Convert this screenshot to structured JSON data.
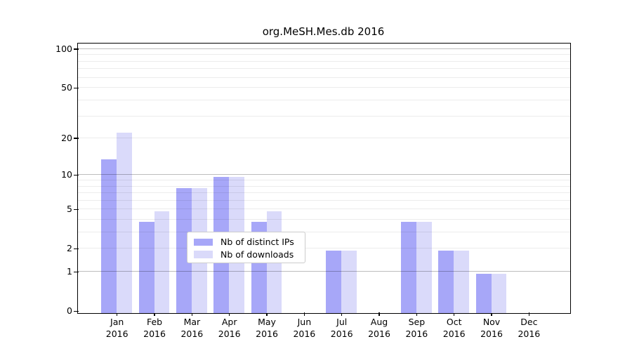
{
  "chart_data": {
    "type": "bar",
    "title": "org.MeSH.Mes.db 2016",
    "x_categories": [
      "Jan",
      "Feb",
      "Mar",
      "Apr",
      "May",
      "Jun",
      "Jul",
      "Aug",
      "Sep",
      "Oct",
      "Nov",
      "Dec"
    ],
    "x_year_label": "2016",
    "series": [
      {
        "name": "Nb of distinct IPs",
        "color": "#a7a7f8",
        "values": [
          14,
          4,
          8,
          10,
          4,
          0,
          2,
          0,
          4,
          2,
          1,
          0
        ]
      },
      {
        "name": "Nb of downloads",
        "color": "#dadafa",
        "values": [
          23,
          5,
          8,
          10,
          5,
          0,
          2,
          0,
          4,
          2,
          1,
          0
        ]
      }
    ],
    "y_axis": {
      "scale": "log1p",
      "tick_labels": [
        0,
        1,
        2,
        5,
        10,
        20,
        50,
        100
      ],
      "range": [
        0,
        100
      ]
    },
    "grid": {
      "minor_lines": [
        2,
        3,
        4,
        5,
        6,
        7,
        8,
        9,
        20,
        30,
        40,
        50,
        60,
        70,
        80,
        90
      ],
      "major_lines": [
        1,
        10,
        100
      ],
      "minor_color": "rgba(0,0,0,0.075)",
      "major_color": "rgba(0,0,0,0.26)"
    },
    "legend": {
      "position": "lower-center"
    },
    "axis_color": "#000000",
    "background_color": "#ffffff"
  }
}
